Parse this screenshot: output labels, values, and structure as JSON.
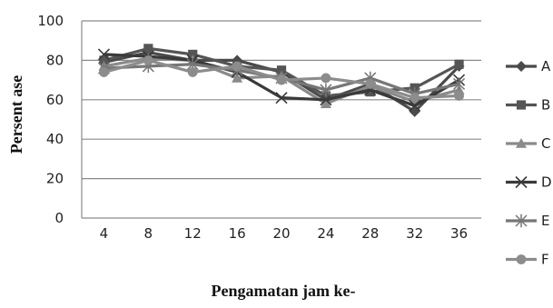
{
  "chart_data": {
    "type": "line",
    "xlabel": "Pengamatan jam ke-",
    "ylabel": "Persent ase",
    "categories": [
      "4",
      "8",
      "12",
      "16",
      "20",
      "24",
      "28",
      "32",
      "36"
    ],
    "ylim": [
      0,
      100
    ],
    "yticks": [
      "0",
      "20",
      "40",
      "60",
      "80",
      "100"
    ],
    "grid": "horizontal",
    "legend_position": "right",
    "series": [
      {
        "name": "A",
        "marker": "diamond",
        "color": "#4a4a4a",
        "values": [
          79,
          84,
          80,
          80,
          74,
          60,
          68,
          54,
          77
        ]
      },
      {
        "name": "B",
        "marker": "square",
        "color": "#555555",
        "values": [
          80,
          86,
          83,
          77,
          75,
          62,
          64,
          66,
          78
        ]
      },
      {
        "name": "C",
        "marker": "triangle",
        "color": "#8a8a8a",
        "values": [
          77,
          81,
          80,
          71,
          72,
          58,
          67,
          59,
          65
        ]
      },
      {
        "name": "D",
        "marker": "x",
        "color": "#3a3a3a",
        "values": [
          83,
          82,
          80,
          74,
          61,
          60,
          65,
          57,
          70
        ]
      },
      {
        "name": "E",
        "marker": "asterisk",
        "color": "#777777",
        "values": [
          76,
          77,
          78,
          75,
          71,
          65,
          71,
          63,
          68
        ]
      },
      {
        "name": "F",
        "marker": "circle",
        "color": "#8c8c8c",
        "values": [
          74,
          80,
          74,
          77,
          70,
          71,
          68,
          61,
          62
        ]
      }
    ]
  }
}
